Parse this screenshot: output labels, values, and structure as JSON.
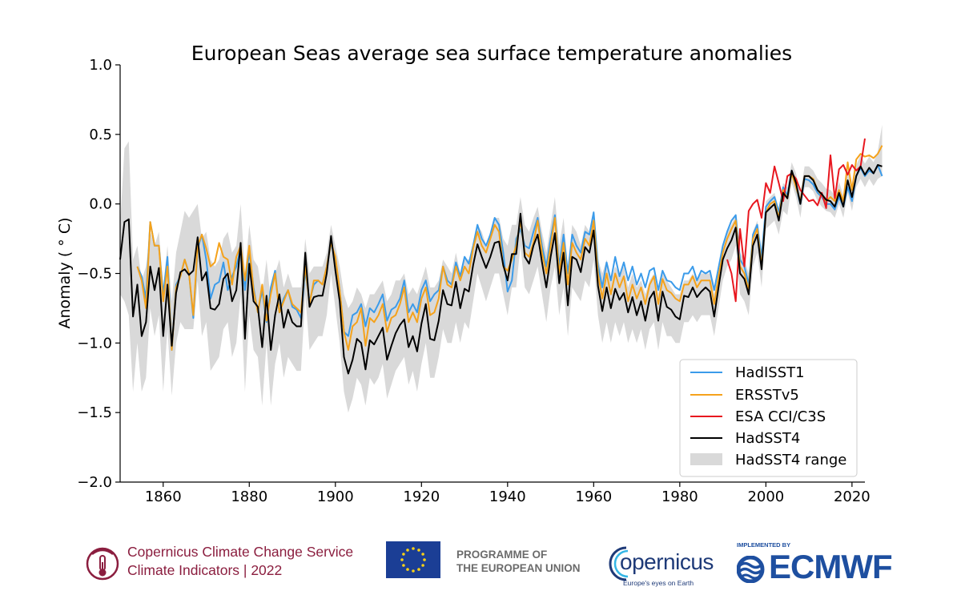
{
  "chart_data": {
    "type": "line",
    "title": "European Seas average sea surface temperature anomalies",
    "xlabel": "",
    "ylabel": "Anomaly ( ° C)",
    "xlim": [
      1850,
      2023
    ],
    "ylim": [
      -2.0,
      1.0
    ],
    "x_ticks": [
      1860,
      1880,
      1900,
      1920,
      1940,
      1960,
      1980,
      2000,
      2020
    ],
    "y_ticks": [
      1.0,
      0.5,
      0.0,
      -0.5,
      -1.0,
      -1.5,
      -2.0
    ],
    "y_tick_labels": [
      "1.0",
      "0.5",
      "0.0",
      "−0.5",
      "−1.0",
      "−1.5",
      "−2.0"
    ],
    "legend_position": "lower-right",
    "legend": [
      "HadISST1",
      "ERSSTv5",
      "ESA CCI/C3S",
      "HadSST4",
      "HadSST4 range"
    ],
    "colors": {
      "HadISST1": "#3b9bea",
      "ERSSTv5": "#f5a21b",
      "ESA CCI/C3S": "#e8171f",
      "HadSST4": "#000000",
      "HadSST4 range": "#d9d9d9"
    },
    "series": [
      {
        "name": "HadSST4",
        "x_start": 1850,
        "values": [
          -0.4,
          -0.13,
          -0.11,
          -0.81,
          -0.58,
          -0.95,
          -0.85,
          -0.45,
          -0.62,
          -0.46,
          -0.95,
          -0.58,
          -1.02,
          -0.64,
          -0.49,
          -0.47,
          -0.51,
          -0.48,
          -0.24,
          -0.55,
          -0.49,
          -0.75,
          -0.76,
          -0.72,
          -0.54,
          -0.5,
          -0.7,
          -0.62,
          -0.28,
          -0.97,
          -0.43,
          -0.7,
          -0.74,
          -1.03,
          -0.66,
          -1.05,
          -0.8,
          -0.65,
          -0.89,
          -0.76,
          -0.85,
          -0.88,
          -0.88,
          -0.35,
          -0.74,
          -0.67,
          -0.66,
          -0.66,
          -0.5,
          -0.23,
          -0.48,
          -0.7,
          -1.1,
          -1.22,
          -1.12,
          -0.97,
          -1.0,
          -1.19,
          -0.98,
          -1.01,
          -0.95,
          -0.89,
          -1.12,
          -1.02,
          -0.93,
          -0.87,
          -0.83,
          -1.03,
          -0.95,
          -1.06,
          -0.86,
          -0.72,
          -0.97,
          -0.98,
          -0.84,
          -0.62,
          -0.72,
          -0.73,
          -0.56,
          -0.75,
          -0.61,
          -0.63,
          -0.44,
          -0.29,
          -0.38,
          -0.46,
          -0.38,
          -0.28,
          -0.27,
          -0.44,
          -0.55,
          -0.36,
          -0.36,
          -0.07,
          -0.38,
          -0.43,
          -0.3,
          -0.22,
          -0.42,
          -0.6,
          -0.38,
          -0.21,
          -0.57,
          -0.35,
          -0.73,
          -0.38,
          -0.4,
          -0.49,
          -0.31,
          -0.35,
          -0.19,
          -0.59,
          -0.77,
          -0.6,
          -0.75,
          -0.61,
          -0.69,
          -0.64,
          -0.78,
          -0.67,
          -0.8,
          -0.7,
          -0.84,
          -0.68,
          -0.63,
          -0.84,
          -0.63,
          -0.74,
          -0.76,
          -0.81,
          -0.83,
          -0.66,
          -0.67,
          -0.6,
          -0.67,
          -0.63,
          -0.6,
          -0.63,
          -0.81,
          -0.6,
          -0.4,
          -0.32,
          -0.26,
          -0.17,
          -0.5,
          -0.54,
          -0.65,
          -0.3,
          -0.22,
          -0.47,
          -0.06,
          -0.03,
          0.0,
          -0.12,
          0.08,
          0.04,
          0.24,
          0.15,
          0.0,
          0.2,
          0.2,
          0.17,
          0.1,
          0.07,
          0.03,
          0.02,
          -0.02,
          0.08,
          -0.02,
          0.17,
          0.05,
          0.2,
          0.27,
          0.21,
          0.26,
          0.22,
          0.28,
          0.27
        ]
      },
      {
        "name": "HadSST4 range",
        "x_start": 1850,
        "upper": [
          -0.15,
          0.4,
          0.45,
          -0.4,
          -0.3,
          -0.55,
          -0.45,
          -0.2,
          -0.3,
          -0.2,
          -0.6,
          -0.3,
          -0.7,
          -0.35,
          -0.2,
          -0.05,
          -0.1,
          -0.05,
          0.0,
          -0.25,
          -0.2,
          -0.4,
          -0.45,
          -0.4,
          -0.25,
          -0.2,
          -0.35,
          -0.3,
          0.0,
          -0.5,
          -0.15,
          -0.4,
          -0.45,
          -0.65,
          -0.4,
          -0.7,
          -0.5,
          -0.4,
          -0.6,
          -0.5,
          -0.6,
          -0.6,
          -0.6,
          -0.25,
          -0.5,
          -0.45,
          -0.45,
          -0.45,
          -0.35,
          -0.15,
          -0.3,
          -0.45,
          -0.65,
          -0.75,
          -0.7,
          -0.6,
          -0.65,
          -0.75,
          -0.65,
          -0.65,
          -0.6,
          -0.55,
          -0.7,
          -0.65,
          -0.55,
          -0.55,
          -0.5,
          -0.65,
          -0.6,
          -0.65,
          -0.55,
          -0.45,
          -0.6,
          -0.6,
          -0.55,
          -0.4,
          -0.45,
          -0.5,
          -0.35,
          -0.5,
          -0.4,
          -0.4,
          -0.3,
          -0.15,
          -0.2,
          -0.3,
          -0.2,
          -0.1,
          -0.1,
          -0.25,
          -0.3,
          -0.15,
          -0.15,
          0.05,
          -0.15,
          -0.2,
          -0.1,
          -0.02,
          -0.2,
          -0.35,
          -0.15,
          0.05,
          -0.3,
          -0.1,
          -0.45,
          -0.15,
          -0.2,
          -0.3,
          -0.15,
          -0.2,
          -0.05,
          -0.4,
          -0.5,
          -0.4,
          -0.55,
          -0.45,
          -0.5,
          -0.45,
          -0.6,
          -0.5,
          -0.6,
          -0.55,
          -0.65,
          -0.55,
          -0.5,
          -0.65,
          -0.5,
          -0.55,
          -0.6,
          -0.65,
          -0.65,
          -0.55,
          -0.55,
          -0.5,
          -0.55,
          -0.5,
          -0.5,
          -0.5,
          -0.65,
          -0.5,
          -0.3,
          -0.2,
          -0.15,
          -0.08,
          -0.35,
          -0.4,
          -0.5,
          -0.2,
          -0.12,
          -0.35,
          0.02,
          0.05,
          0.08,
          -0.03,
          0.15,
          0.12,
          0.3,
          0.22,
          0.08,
          0.27,
          0.27,
          0.24,
          0.18,
          0.15,
          0.11,
          0.1,
          0.06,
          0.16,
          0.06,
          0.25,
          0.13,
          0.28,
          0.35,
          0.29,
          0.34,
          0.3,
          0.38,
          0.57
        ],
        "lower": [
          -0.65,
          -0.7,
          -0.8,
          -1.35,
          -1.0,
          -1.35,
          -1.25,
          -0.75,
          -0.95,
          -0.8,
          -1.35,
          -0.9,
          -1.38,
          -1.0,
          -0.85,
          -0.9,
          -0.9,
          -0.9,
          -0.55,
          -0.95,
          -0.85,
          -1.2,
          -1.15,
          -1.1,
          -0.9,
          -0.85,
          -1.1,
          -1.0,
          -0.65,
          -1.35,
          -0.8,
          -1.05,
          -1.1,
          -1.45,
          -1.0,
          -1.45,
          -1.15,
          -1.0,
          -1.25,
          -1.1,
          -1.15,
          -1.2,
          -1.2,
          -0.65,
          -1.05,
          -1.0,
          -0.95,
          -0.95,
          -0.8,
          -0.5,
          -0.75,
          -1.0,
          -1.35,
          -1.5,
          -1.4,
          -1.25,
          -1.3,
          -1.45,
          -1.25,
          -1.3,
          -1.25,
          -1.15,
          -1.4,
          -1.3,
          -1.2,
          -1.15,
          -1.1,
          -1.3,
          -1.2,
          -1.35,
          -1.15,
          -1.0,
          -1.25,
          -1.25,
          -1.1,
          -0.9,
          -1.0,
          -1.0,
          -0.85,
          -1.0,
          -0.85,
          -0.9,
          -0.7,
          -0.5,
          -0.6,
          -0.7,
          -0.6,
          -0.5,
          -0.5,
          -0.65,
          -0.8,
          -0.6,
          -0.6,
          -0.3,
          -0.6,
          -0.65,
          -0.55,
          -0.45,
          -0.65,
          -0.85,
          -0.6,
          -0.45,
          -0.8,
          -0.6,
          -0.95,
          -0.6,
          -0.65,
          -0.7,
          -0.55,
          -0.6,
          -0.4,
          -0.8,
          -1.0,
          -0.85,
          -1.0,
          -0.85,
          -0.95,
          -0.85,
          -1.0,
          -0.9,
          -1.0,
          -0.9,
          -1.05,
          -0.9,
          -0.85,
          -1.05,
          -0.85,
          -0.95,
          -0.95,
          -1.0,
          -1.0,
          -0.85,
          -0.85,
          -0.8,
          -0.85,
          -0.8,
          -0.8,
          -0.8,
          -0.95,
          -0.75,
          -0.55,
          -0.45,
          -0.4,
          -0.3,
          -0.65,
          -0.7,
          -0.8,
          -0.45,
          -0.35,
          -0.6,
          -0.18,
          -0.15,
          -0.12,
          -0.22,
          -0.05,
          -0.08,
          0.15,
          0.05,
          -0.1,
          0.12,
          0.12,
          0.09,
          0.02,
          -0.02,
          -0.05,
          -0.06,
          -0.1,
          0.0,
          -0.1,
          0.08,
          -0.05,
          0.12,
          0.18,
          0.12,
          0.18,
          0.13,
          0.18,
          0.2
        ]
      },
      {
        "name": "HadISST1",
        "x_start": 1850,
        "values": [
          null,
          null,
          null,
          null,
          -0.45,
          -0.52,
          -0.68,
          -0.13,
          -0.3,
          -0.3,
          -0.65,
          -0.38,
          -1.05,
          -0.58,
          -0.52,
          -0.4,
          -0.5,
          -0.82,
          -0.32,
          -0.22,
          -0.4,
          -0.68,
          -0.58,
          -0.56,
          -0.42,
          -0.62,
          -0.52,
          -0.45,
          -0.32,
          -0.62,
          -0.34,
          -0.6,
          -0.78,
          -0.62,
          -0.85,
          -0.6,
          -0.48,
          -0.78,
          -0.68,
          -0.62,
          -0.74,
          -0.76,
          -0.82,
          -0.48,
          -0.7,
          -0.58,
          -0.55,
          -0.58,
          -0.45,
          -0.28,
          -0.4,
          -0.62,
          -0.92,
          -0.95,
          -0.8,
          -0.78,
          -0.72,
          -0.88,
          -0.75,
          -0.78,
          -0.72,
          -0.65,
          -0.84,
          -0.76,
          -0.74,
          -0.68,
          -0.55,
          -0.78,
          -0.72,
          -0.78,
          -0.62,
          -0.55,
          -0.7,
          -0.65,
          -0.62,
          -0.45,
          -0.55,
          -0.58,
          -0.42,
          -0.52,
          -0.38,
          -0.43,
          -0.3,
          -0.15,
          -0.25,
          -0.3,
          -0.22,
          -0.1,
          -0.15,
          -0.35,
          -0.63,
          -0.55,
          -0.25,
          -0.18,
          -0.3,
          -0.32,
          -0.2,
          -0.1,
          -0.3,
          -0.45,
          -0.25,
          -0.08,
          -0.45,
          -0.22,
          -0.5,
          -0.22,
          -0.3,
          -0.35,
          -0.2,
          -0.22,
          -0.06,
          -0.44,
          -0.6,
          -0.42,
          -0.55,
          -0.38,
          -0.52,
          -0.42,
          -0.55,
          -0.45,
          -0.58,
          -0.5,
          -0.6,
          -0.48,
          -0.46,
          -0.62,
          -0.48,
          -0.55,
          -0.56,
          -0.6,
          -0.62,
          -0.5,
          -0.5,
          -0.45,
          -0.55,
          -0.48,
          -0.5,
          -0.48,
          -0.62,
          -0.46,
          -0.3,
          -0.2,
          -0.12,
          -0.08,
          -0.4,
          -0.45,
          -0.58,
          -0.22,
          -0.15,
          -0.38,
          -0.02,
          0.02,
          0.05,
          -0.06,
          0.12,
          0.06,
          0.24,
          0.12,
          0.0,
          0.18,
          0.17,
          0.14,
          0.08,
          0.05,
          0.0,
          0.0,
          -0.04,
          0.05,
          -0.02,
          0.12,
          0.02,
          0.2,
          0.26,
          0.2,
          0.24,
          0.22,
          0.28,
          0.2
        ]
      },
      {
        "name": "ERSSTv5",
        "x_start": 1850,
        "values": [
          null,
          null,
          null,
          null,
          -0.45,
          -0.55,
          -0.75,
          -0.13,
          -0.3,
          -0.3,
          -0.7,
          -0.45,
          -1.05,
          -0.6,
          -0.52,
          -0.4,
          -0.5,
          -0.8,
          -0.3,
          -0.22,
          -0.32,
          -0.45,
          -0.42,
          -0.28,
          -0.38,
          -0.4,
          -0.58,
          -0.38,
          -0.3,
          -0.55,
          -0.3,
          -0.62,
          -0.78,
          -0.58,
          -0.84,
          -0.65,
          -0.5,
          -0.78,
          -0.7,
          -0.62,
          -0.72,
          -0.75,
          -0.78,
          -0.45,
          -0.72,
          -0.55,
          -0.55,
          -0.58,
          -0.45,
          -0.28,
          -0.38,
          -0.62,
          -0.92,
          -1.05,
          -0.88,
          -0.85,
          -0.75,
          -1.02,
          -0.82,
          -0.85,
          -0.8,
          -0.72,
          -0.92,
          -0.82,
          -0.8,
          -0.72,
          -0.6,
          -0.85,
          -0.78,
          -0.85,
          -0.68,
          -0.6,
          -0.8,
          -0.78,
          -0.68,
          -0.45,
          -0.58,
          -0.6,
          -0.45,
          -0.55,
          -0.45,
          -0.5,
          -0.32,
          -0.2,
          -0.3,
          -0.35,
          -0.25,
          -0.15,
          -0.2,
          -0.45,
          -0.48,
          -0.4,
          -0.3,
          -0.12,
          -0.35,
          -0.38,
          -0.28,
          -0.12,
          -0.35,
          -0.5,
          -0.3,
          -0.1,
          -0.5,
          -0.28,
          -0.58,
          -0.28,
          -0.35,
          -0.4,
          -0.25,
          -0.3,
          -0.12,
          -0.5,
          -0.68,
          -0.5,
          -0.65,
          -0.5,
          -0.6,
          -0.52,
          -0.7,
          -0.58,
          -0.68,
          -0.6,
          -0.72,
          -0.58,
          -0.52,
          -0.72,
          -0.54,
          -0.62,
          -0.64,
          -0.68,
          -0.7,
          -0.58,
          -0.58,
          -0.52,
          -0.6,
          -0.55,
          -0.55,
          -0.55,
          -0.72,
          -0.52,
          -0.35,
          -0.25,
          -0.18,
          -0.12,
          -0.45,
          -0.5,
          -0.62,
          -0.25,
          -0.18,
          -0.45,
          -0.06,
          0.0,
          0.02,
          -0.1,
          0.1,
          0.04,
          0.22,
          0.12,
          0.02,
          0.2,
          0.2,
          0.18,
          0.1,
          0.06,
          0.02,
          0.05,
          0.02,
          0.1,
          0.02,
          0.3,
          0.1,
          0.32,
          0.36,
          0.34,
          0.35,
          0.33,
          0.36,
          0.42
        ]
      },
      {
        "name": "ESA CCI/C3S",
        "x_start": 1850,
        "values": [
          null,
          null,
          null,
          null,
          null,
          null,
          null,
          null,
          null,
          null,
          null,
          null,
          null,
          null,
          null,
          null,
          null,
          null,
          null,
          null,
          null,
          null,
          null,
          null,
          null,
          null,
          null,
          null,
          null,
          null,
          null,
          null,
          null,
          null,
          null,
          null,
          null,
          null,
          null,
          null,
          null,
          null,
          null,
          null,
          null,
          null,
          null,
          null,
          null,
          null,
          null,
          null,
          null,
          null,
          null,
          null,
          null,
          null,
          null,
          null,
          null,
          null,
          null,
          null,
          null,
          null,
          null,
          null,
          null,
          null,
          null,
          null,
          null,
          null,
          null,
          null,
          null,
          null,
          null,
          null,
          null,
          null,
          null,
          null,
          null,
          null,
          null,
          null,
          null,
          null,
          null,
          null,
          null,
          null,
          null,
          null,
          null,
          null,
          null,
          null,
          null,
          null,
          null,
          null,
          null,
          null,
          null,
          null,
          null,
          null,
          null,
          null,
          null,
          null,
          null,
          null,
          null,
          null,
          null,
          null,
          null,
          null,
          null,
          null,
          null,
          null,
          null,
          null,
          null,
          null,
          null,
          null,
          null,
          null,
          null,
          null,
          null,
          null,
          null,
          null,
          null,
          -0.4,
          -0.5,
          -0.7,
          -0.18,
          -0.45,
          -0.05,
          0.0,
          0.03,
          -0.1,
          0.15,
          0.08,
          0.27,
          0.15,
          0.02,
          0.2,
          0.22,
          0.18,
          0.1,
          0.06,
          0.02,
          0.03,
          -0.01,
          0.08,
          -0.03,
          0.35,
          0.04,
          0.25,
          0.28,
          0.21,
          0.28,
          0.24,
          0.27,
          0.47
        ]
      }
    ]
  },
  "footer": {
    "c3s_line1": "Copernicus Climate Change Service",
    "c3s_line2": "Climate Indicators | 2022",
    "eu_line1": "PROGRAMME OF",
    "eu_line2": "THE EUROPEAN UNION",
    "copernicus_name": "opernicus",
    "copernicus_tagline": "Europe's eyes on Earth",
    "ecmwf_small": "IMPLEMENTED BY",
    "ecmwf_name": "ECMWF"
  }
}
